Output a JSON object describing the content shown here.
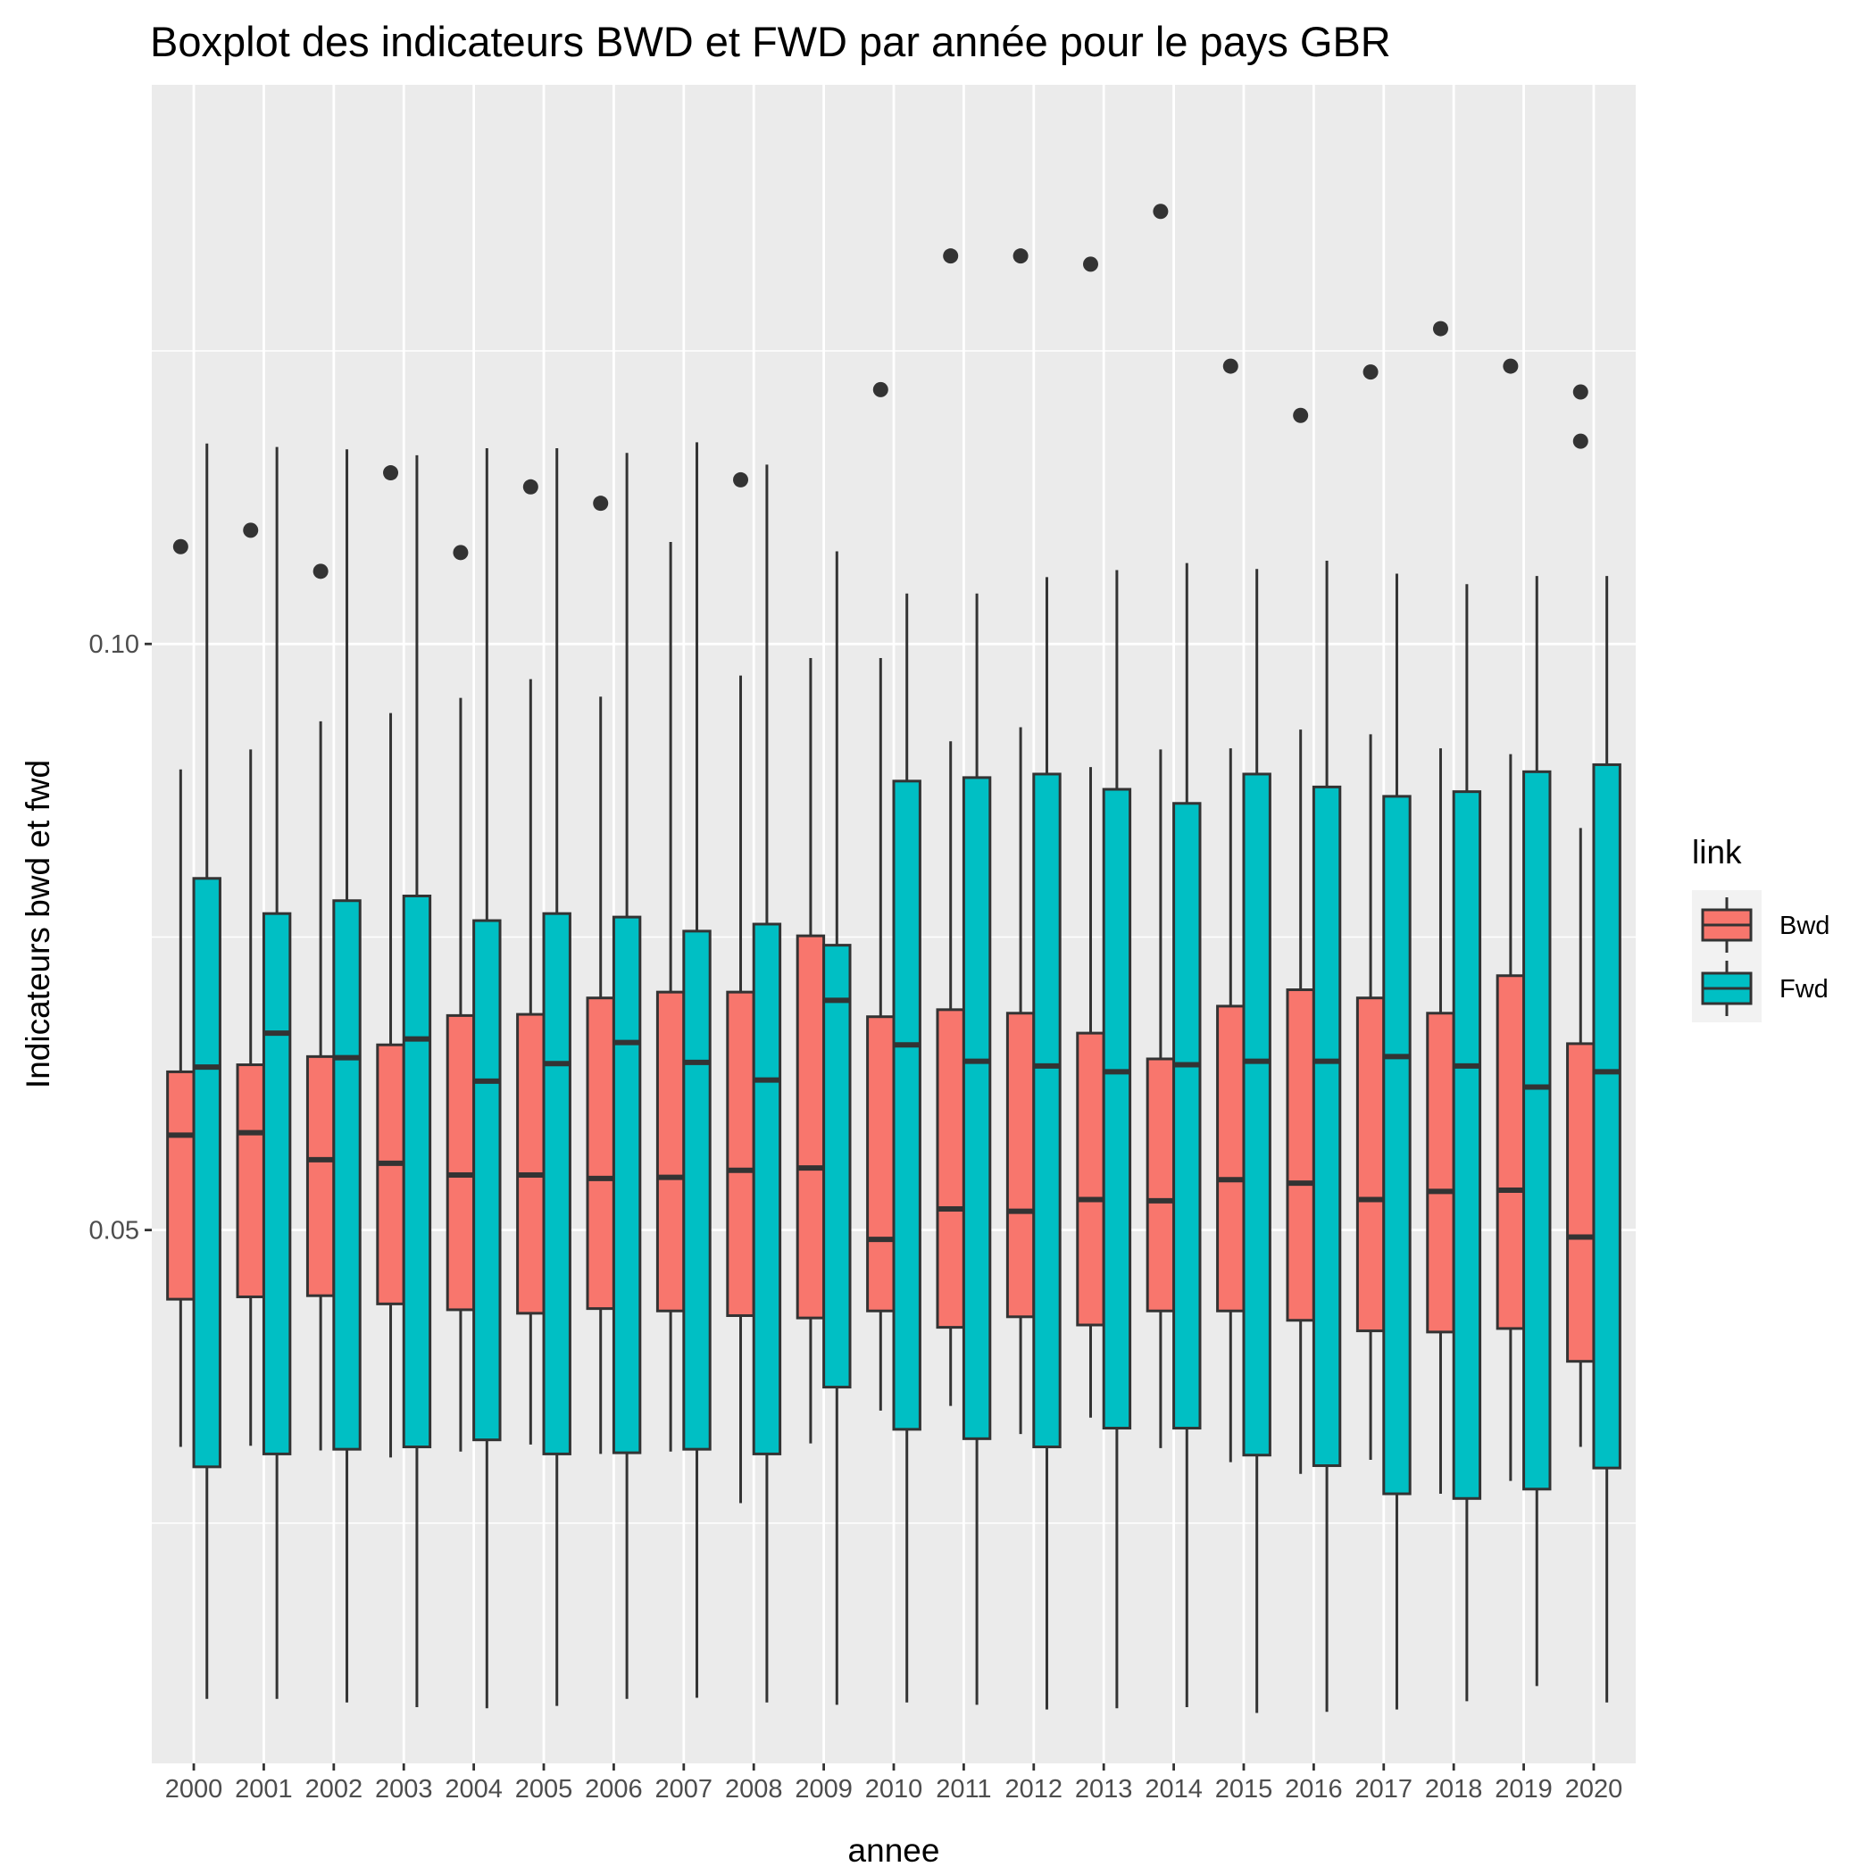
{
  "chart_data": {
    "type": "box",
    "title": "Boxplot des indicateurs BWD et FWD par année pour le pays GBR",
    "xlabel": "annee",
    "ylabel": "Indicateurs bwd et fwd",
    "ylim": [
      0.0045,
      0.1477
    ],
    "yticks": [
      0.05,
      0.1
    ],
    "ytick_labels": [
      "0.05",
      "0.10"
    ],
    "grid": true,
    "legend": {
      "title": "link",
      "position": "right"
    },
    "categories": [
      "2000",
      "2001",
      "2002",
      "2003",
      "2004",
      "2005",
      "2006",
      "2007",
      "2008",
      "2009",
      "2010",
      "2011",
      "2012",
      "2013",
      "2014",
      "2015",
      "2016",
      "2017",
      "2018",
      "2019",
      "2020"
    ],
    "series": [
      {
        "name": "Bwd",
        "color": "#F8766D",
        "boxes": [
          {
            "wlo": 0.0315,
            "q1": 0.0441,
            "med": 0.0581,
            "q3": 0.0635,
            "whi": 0.0893,
            "outliers": [
              0.1083
            ]
          },
          {
            "wlo": 0.0316,
            "q1": 0.0443,
            "med": 0.0583,
            "q3": 0.0641,
            "whi": 0.091,
            "outliers": [
              0.1097
            ]
          },
          {
            "wlo": 0.0312,
            "q1": 0.0444,
            "med": 0.056,
            "q3": 0.0648,
            "whi": 0.0934,
            "outliers": [
              0.1062
            ]
          },
          {
            "wlo": 0.0306,
            "q1": 0.0437,
            "med": 0.0557,
            "q3": 0.0658,
            "whi": 0.0941,
            "outliers": [
              0.1146
            ]
          },
          {
            "wlo": 0.0311,
            "q1": 0.0432,
            "med": 0.0547,
            "q3": 0.0683,
            "whi": 0.0954,
            "outliers": [
              0.1078
            ]
          },
          {
            "wlo": 0.0317,
            "q1": 0.0429,
            "med": 0.0547,
            "q3": 0.0684,
            "whi": 0.097,
            "outliers": [
              0.1134
            ]
          },
          {
            "wlo": 0.0309,
            "q1": 0.0433,
            "med": 0.0544,
            "q3": 0.0698,
            "whi": 0.0955,
            "outliers": [
              0.112
            ]
          },
          {
            "wlo": 0.0311,
            "q1": 0.0431,
            "med": 0.0545,
            "q3": 0.0703,
            "whi": 0.1087,
            "outliers": []
          },
          {
            "wlo": 0.0267,
            "q1": 0.0427,
            "med": 0.0551,
            "q3": 0.0703,
            "whi": 0.0973,
            "outliers": [
              0.114
            ]
          },
          {
            "wlo": 0.0318,
            "q1": 0.0425,
            "med": 0.0553,
            "q3": 0.0751,
            "whi": 0.0988,
            "outliers": []
          },
          {
            "wlo": 0.0346,
            "q1": 0.0431,
            "med": 0.0492,
            "q3": 0.0682,
            "whi": 0.0988,
            "outliers": [
              0.1217
            ]
          },
          {
            "wlo": 0.035,
            "q1": 0.0417,
            "med": 0.0518,
            "q3": 0.0688,
            "whi": 0.0917,
            "outliers": [
              0.1331
            ]
          },
          {
            "wlo": 0.0326,
            "q1": 0.0426,
            "med": 0.0516,
            "q3": 0.0685,
            "whi": 0.0929,
            "outliers": [
              0.1331
            ]
          },
          {
            "wlo": 0.034,
            "q1": 0.0419,
            "med": 0.0526,
            "q3": 0.0668,
            "whi": 0.0895,
            "outliers": [
              0.1324
            ]
          },
          {
            "wlo": 0.0314,
            "q1": 0.0431,
            "med": 0.0525,
            "q3": 0.0646,
            "whi": 0.091,
            "outliers": [
              0.1369
            ]
          },
          {
            "wlo": 0.0302,
            "q1": 0.0431,
            "med": 0.0543,
            "q3": 0.0691,
            "whi": 0.0911,
            "outliers": [
              0.1237
            ]
          },
          {
            "wlo": 0.0292,
            "q1": 0.0423,
            "med": 0.054,
            "q3": 0.0705,
            "whi": 0.0927,
            "outliers": [
              0.1195
            ]
          },
          {
            "wlo": 0.0304,
            "q1": 0.0414,
            "med": 0.0526,
            "q3": 0.0698,
            "whi": 0.0923,
            "outliers": [
              0.1232
            ]
          },
          {
            "wlo": 0.0275,
            "q1": 0.0413,
            "med": 0.0533,
            "q3": 0.0685,
            "whi": 0.0911,
            "outliers": [
              0.1269
            ]
          },
          {
            "wlo": 0.0286,
            "q1": 0.0416,
            "med": 0.0534,
            "q3": 0.0717,
            "whi": 0.0906,
            "outliers": [
              0.1237
            ]
          },
          {
            "wlo": 0.0315,
            "q1": 0.0388,
            "med": 0.0494,
            "q3": 0.0659,
            "whi": 0.0843,
            "outliers": [
              0.1215,
              0.1173
            ]
          }
        ]
      },
      {
        "name": "Fwd",
        "color": "#00BFC4",
        "boxes": [
          {
            "wlo": 0.01,
            "q1": 0.0298,
            "med": 0.0639,
            "q3": 0.08,
            "whi": 0.1171,
            "outliers": []
          },
          {
            "wlo": 0.01,
            "q1": 0.0309,
            "med": 0.0668,
            "q3": 0.077,
            "whi": 0.1168,
            "outliers": []
          },
          {
            "wlo": 0.0097,
            "q1": 0.0313,
            "med": 0.0647,
            "q3": 0.0781,
            "whi": 0.1166,
            "outliers": []
          },
          {
            "wlo": 0.0093,
            "q1": 0.0315,
            "med": 0.0663,
            "q3": 0.0785,
            "whi": 0.1161,
            "outliers": []
          },
          {
            "wlo": 0.0092,
            "q1": 0.0321,
            "med": 0.0627,
            "q3": 0.0764,
            "whi": 0.1167,
            "outliers": []
          },
          {
            "wlo": 0.0094,
            "q1": 0.0309,
            "med": 0.0642,
            "q3": 0.077,
            "whi": 0.1167,
            "outliers": []
          },
          {
            "wlo": 0.01,
            "q1": 0.031,
            "med": 0.066,
            "q3": 0.0767,
            "whi": 0.1163,
            "outliers": []
          },
          {
            "wlo": 0.0101,
            "q1": 0.0313,
            "med": 0.0643,
            "q3": 0.0755,
            "whi": 0.1172,
            "outliers": []
          },
          {
            "wlo": 0.0097,
            "q1": 0.0309,
            "med": 0.0628,
            "q3": 0.0761,
            "whi": 0.1153,
            "outliers": []
          },
          {
            "wlo": 0.0095,
            "q1": 0.0366,
            "med": 0.0696,
            "q3": 0.0743,
            "whi": 0.1079,
            "outliers": []
          },
          {
            "wlo": 0.0097,
            "q1": 0.033,
            "med": 0.0658,
            "q3": 0.0883,
            "whi": 0.1043,
            "outliers": []
          },
          {
            "wlo": 0.0095,
            "q1": 0.0322,
            "med": 0.0644,
            "q3": 0.0886,
            "whi": 0.1043,
            "outliers": []
          },
          {
            "wlo": 0.0091,
            "q1": 0.0315,
            "med": 0.064,
            "q3": 0.0889,
            "whi": 0.1057,
            "outliers": []
          },
          {
            "wlo": 0.0092,
            "q1": 0.0331,
            "med": 0.0635,
            "q3": 0.0876,
            "whi": 0.1063,
            "outliers": []
          },
          {
            "wlo": 0.0093,
            "q1": 0.0331,
            "med": 0.0641,
            "q3": 0.0864,
            "whi": 0.1069,
            "outliers": []
          },
          {
            "wlo": 0.0088,
            "q1": 0.0308,
            "med": 0.0644,
            "q3": 0.0889,
            "whi": 0.1064,
            "outliers": []
          },
          {
            "wlo": 0.0089,
            "q1": 0.0299,
            "med": 0.0644,
            "q3": 0.0878,
            "whi": 0.1071,
            "outliers": []
          },
          {
            "wlo": 0.0091,
            "q1": 0.0275,
            "med": 0.0648,
            "q3": 0.087,
            "whi": 0.106,
            "outliers": []
          },
          {
            "wlo": 0.0098,
            "q1": 0.0271,
            "med": 0.064,
            "q3": 0.0874,
            "whi": 0.1051,
            "outliers": []
          },
          {
            "wlo": 0.0111,
            "q1": 0.0279,
            "med": 0.0622,
            "q3": 0.0891,
            "whi": 0.1058,
            "outliers": []
          },
          {
            "wlo": 0.0097,
            "q1": 0.0297,
            "med": 0.0635,
            "q3": 0.0897,
            "whi": 0.1058,
            "outliers": []
          }
        ]
      }
    ]
  }
}
